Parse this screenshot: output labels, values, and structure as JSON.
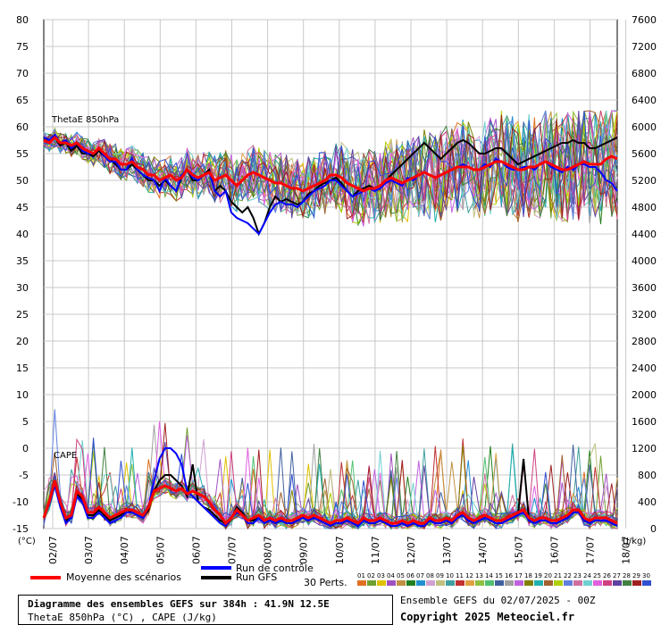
{
  "chart_data": {
    "type": "line",
    "title": "Diagramme des ensembles GEFS sur 384h : 41.9N 12.5E",
    "subtitle": "ThetaE 850hPa (°C) , CAPE (J/kg)",
    "left_axis_unit": "(°C)",
    "right_axis_unit": "(J/kg)",
    "left_ticks": [
      80,
      75,
      70,
      65,
      60,
      55,
      50,
      45,
      40,
      35,
      30,
      25,
      20,
      15,
      10,
      5,
      0,
      -5,
      -10,
      -15
    ],
    "right_ticks": [
      7600,
      7200,
      6800,
      6400,
      6000,
      5600,
      5200,
      4800,
      4400,
      4000,
      3600,
      3200,
      2800,
      2400,
      2000,
      1600,
      1200,
      800,
      400,
      0
    ],
    "ylim_left": [
      -15,
      80
    ],
    "ylim_right": [
      0,
      7600
    ],
    "grid": true,
    "x_labels": [
      "02/07",
      "03/07",
      "04/07",
      "05/07",
      "06/07",
      "07/07",
      "08/07",
      "09/07",
      "10/07",
      "11/07",
      "12/07",
      "13/07",
      "14/07",
      "15/07",
      "16/07",
      "17/07",
      "18/07"
    ],
    "panel_labels": {
      "thetae": "ThetaE 850hPa",
      "cape": "CAPE"
    },
    "thetae_mean": [
      57.5,
      57,
      58,
      57,
      57,
      56.5,
      57,
      56,
      55.5,
      55,
      56,
      55,
      54,
      54,
      53,
      53,
      53.5,
      52.5,
      52,
      51,
      51,
      50,
      50.5,
      51,
      50,
      50.5,
      52,
      51,
      50.5,
      51,
      51.5,
      50,
      50.5,
      51,
      50,
      49,
      50,
      51,
      51.5,
      51,
      50.5,
      50,
      49.5,
      49.5,
      49,
      48.5,
      48.5,
      48,
      48.5,
      49,
      49.5,
      50,
      51,
      51,
      50.5,
      49.5,
      49,
      48.5,
      48,
      48.5,
      48.5,
      49,
      50,
      50.5,
      50,
      49.5,
      50,
      50.5,
      51,
      51.5,
      51,
      50.5,
      51,
      51.5,
      52,
      52.5,
      52.5,
      52.5,
      52,
      52,
      52.5,
      53,
      53.5,
      53.5,
      53,
      52.5,
      52,
      52,
      52.5,
      52.5,
      53,
      53.5,
      53,
      52.5,
      52,
      52,
      52.5,
      53,
      53.5,
      53,
      53,
      53,
      54,
      54.5,
      54
    ],
    "thetae_control": [
      58,
      57.5,
      58.5,
      57,
      57.5,
      56,
      57,
      55.5,
      55,
      55,
      56,
      54.5,
      53.5,
      53.5,
      52,
      52,
      54,
      52,
      51,
      50.5,
      50,
      48,
      50.5,
      49,
      48,
      51,
      52,
      50.5,
      50,
      51,
      51.5,
      48,
      47,
      48,
      44,
      43,
      42.5,
      42,
      41,
      40,
      42,
      44,
      45.5,
      46,
      45.5,
      45.5,
      45,
      46,
      47,
      48,
      48.5,
      49,
      50,
      50,
      49,
      48,
      47,
      47.5,
      48,
      48.5,
      48,
      48.5,
      49.5,
      50,
      49.5,
      49,
      50.5,
      50,
      51,
      51.5,
      51,
      50.5,
      51,
      51.5,
      52,
      52.5,
      53,
      52.5,
      52,
      52,
      53,
      52.5,
      54,
      53.5,
      52.5,
      52,
      52,
      52.5,
      52.5,
      52,
      53,
      53.5,
      52.5,
      52,
      51.5,
      52.5,
      52,
      53,
      53,
      52.5,
      52.5,
      51.5,
      50,
      49.5,
      48
    ],
    "thetae_gfs": [
      58,
      57.5,
      58,
      56.5,
      57,
      55.5,
      56.5,
      55,
      55,
      54.5,
      55.5,
      54.5,
      54,
      53,
      52,
      52,
      53,
      52,
      51,
      50,
      50,
      49,
      50,
      49,
      48,
      50.5,
      52,
      50,
      50,
      51,
      52,
      48,
      49,
      48,
      46,
      45,
      44,
      45,
      43,
      40,
      42,
      45,
      47,
      46,
      46.5,
      46,
      45.5,
      46,
      47.5,
      48,
      49,
      49.5,
      50,
      50.5,
      49.5,
      48,
      47,
      48,
      48.5,
      49,
      48.5,
      49,
      50,
      51,
      52,
      53,
      54,
      55,
      56,
      57,
      56,
      55,
      54,
      55,
      56,
      57,
      57.5,
      57,
      56,
      55,
      55,
      55.5,
      56,
      56,
      55,
      54,
      53,
      53.5,
      54,
      54.5,
      55,
      55.5,
      56,
      56.5,
      57,
      57,
      57.5,
      57,
      57,
      56,
      56,
      56.5,
      57,
      57.5,
      58
    ],
    "cape_mean": [
      -13,
      -10,
      -6,
      -10,
      -13,
      -12.5,
      -8,
      -9,
      -12,
      -12,
      -11,
      -12,
      -13,
      -12.5,
      -12,
      -11.5,
      -11.5,
      -12,
      -12.5,
      -11,
      -8,
      -7.5,
      -7,
      -7.5,
      -8,
      -7.5,
      -8.5,
      -8,
      -8.5,
      -9,
      -10,
      -11.5,
      -12.5,
      -14,
      -13,
      -11.5,
      -12.5,
      -13.5,
      -13,
      -12.5,
      -13.5,
      -13,
      -13.5,
      -13,
      -13.5,
      -13.5,
      -13,
      -12.5,
      -13,
      -12.5,
      -13,
      -13.5,
      -14,
      -13.5,
      -13.5,
      -13,
      -13.5,
      -14,
      -13,
      -13.5,
      -13.5,
      -13,
      -13.5,
      -14,
      -14,
      -13.5,
      -14,
      -13.5,
      -14,
      -14,
      -13,
      -13.5,
      -13.5,
      -13,
      -13.5,
      -12.5,
      -12,
      -13,
      -13.5,
      -13,
      -12.5,
      -13,
      -13.5,
      -13.5,
      -13,
      -12.5,
      -12,
      -11.5,
      -13,
      -13.5,
      -13,
      -13,
      -13.5,
      -13.5,
      -13,
      -12.5,
      -11.5,
      -11.5,
      -13,
      -13.5,
      -13,
      -13,
      -13,
      -13.5,
      -14
    ],
    "cape_control": [
      -13,
      -10.5,
      -7,
      -11,
      -14,
      -13,
      -9,
      -10,
      -13,
      -13,
      -12,
      -13,
      -14,
      -13.5,
      -13,
      -12,
      -12,
      -12.5,
      -13,
      -11,
      -6,
      -2,
      0,
      0,
      -1,
      -3,
      -8,
      -9,
      -10,
      -11,
      -12,
      -13,
      -14,
      -14.5,
      -13,
      -12,
      -12.5,
      -14,
      -14,
      -13,
      -14,
      -13.5,
      -14,
      -13.5,
      -14,
      -14,
      -13.5,
      -13,
      -13.5,
      -13,
      -13.5,
      -14,
      -14.5,
      -14,
      -14,
      -13.5,
      -14,
      -14.5,
      -13.5,
      -14,
      -14,
      -13.5,
      -14,
      -14.5,
      -14.5,
      -14,
      -14.5,
      -14,
      -14.5,
      -14.5,
      -13.5,
      -14,
      -14,
      -13.5,
      -14,
      -13,
      -12.5,
      -13.5,
      -14,
      -13.5,
      -13,
      -13.5,
      -14,
      -14,
      -13.5,
      -13,
      -12.5,
      -12,
      -13.5,
      -14,
      -13.5,
      -13.5,
      -14,
      -14,
      -13.5,
      -13,
      -12,
      -12,
      -13.5,
      -14,
      -13.5,
      -13.5,
      -13.5,
      -14,
      -14.5
    ],
    "cape_gfs": [
      -13,
      -10,
      -6.5,
      -10.5,
      -13.5,
      -13,
      -8.5,
      -9.5,
      -12.5,
      -12.5,
      -11.5,
      -12.5,
      -13.5,
      -13,
      -12.5,
      -11.5,
      -12,
      -12.5,
      -13,
      -11.5,
      -8,
      -6,
      -5,
      -5,
      -6,
      -7,
      -9,
      -3,
      -10,
      -11,
      -11.5,
      -12.5,
      -13.5,
      -14,
      -13,
      -11,
      -12,
      -13.5,
      -13.5,
      -13,
      -14,
      -13.5,
      -14,
      -13.5,
      -14,
      -14,
      -13.5,
      -13,
      -13.5,
      -13,
      -13.5,
      -14,
      -14.5,
      -14,
      -14,
      -13.5,
      -14,
      -14.5,
      -13.5,
      -14,
      -14,
      -13.5,
      -14,
      -14.5,
      -14.5,
      -14,
      -14.5,
      -14,
      -14.5,
      -14.5,
      -13.5,
      -14,
      -14,
      -13.5,
      -14,
      -13,
      -12.5,
      -13.5,
      -14,
      -13.5,
      -13,
      -13.5,
      -14,
      -14,
      -13.5,
      -13,
      -12.5,
      -2,
      -13.5,
      -14,
      -13.5,
      -13.5,
      -14,
      -14,
      -13.5,
      -13,
      -12,
      -12,
      -13.5,
      -14,
      -13.5,
      -13.5,
      -13.5,
      -14,
      -14.5
    ],
    "series_colors": {
      "mean": "#ff0000",
      "control": "#0000ff",
      "gfs": "#000000"
    }
  },
  "legend": {
    "mean_label": "Moyenne des scénarios",
    "control_label": "Run de contrôle",
    "gfs_label": "Run GFS",
    "perts_label": "30 Perts.",
    "members": [
      "01",
      "02",
      "03",
      "04",
      "05",
      "06",
      "07",
      "08",
      "09",
      "10",
      "11",
      "12",
      "13",
      "14",
      "15",
      "16",
      "17",
      "18",
      "19",
      "20",
      "21",
      "22",
      "23",
      "24",
      "25",
      "26",
      "27",
      "28",
      "29",
      "30"
    ],
    "member_colors": [
      "#e07020",
      "#70a030",
      "#e0c000",
      "#a050c0",
      "#c09040",
      "#208020",
      "#2090d0",
      "#d0a0d0",
      "#c0c080",
      "#40a0a0",
      "#c03030",
      "#e0a040",
      "#90c040",
      "#50c070",
      "#4060a0",
      "#a0a0a0",
      "#c060e0",
      "#808000",
      "#20b0b0",
      "#a06030",
      "#b0d000",
      "#6080e0",
      "#d070a0",
      "#70d0d0",
      "#e060e0",
      "#d04080",
      "#6040a0",
      "#408040",
      "#a02020",
      "#3050d0"
    ]
  },
  "footer": {
    "title_line1": "Diagramme des ensembles GEFS sur 384h : 41.9N 12.5E",
    "title_line2": "ThetaE 850hPa (°C) , CAPE (J/kg)",
    "ensemble_info": "Ensemble GEFS du 02/07/2025 - 00Z",
    "copyright": "Copyright 2025 Meteociel.fr"
  }
}
